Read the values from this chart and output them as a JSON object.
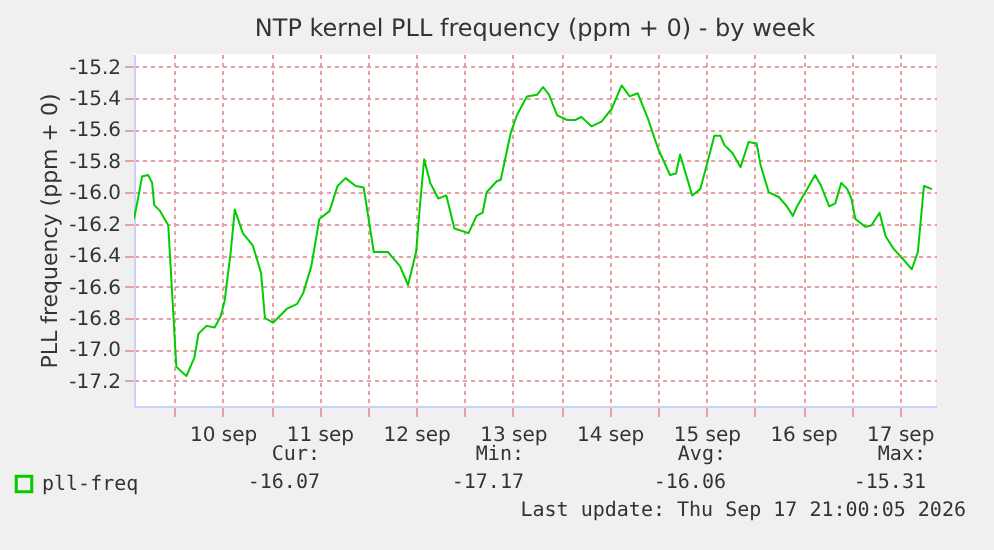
{
  "chart_data": {
    "type": "line",
    "title": "NTP kernel PLL frequency (ppm + 0) - by week",
    "ylabel": "PLL frequency (ppm + 0)",
    "xlim": [
      "2026-09-09T14:00",
      "2026-09-17T21:00"
    ],
    "xticks": [
      {
        "value": "2026-09-10T00:00",
        "label": null
      },
      {
        "value": "2026-09-10T12:00",
        "label": "10 sep"
      },
      {
        "value": "2026-09-11T00:00",
        "label": null
      },
      {
        "value": "2026-09-11T12:00",
        "label": "11 sep"
      },
      {
        "value": "2026-09-12T00:00",
        "label": null
      },
      {
        "value": "2026-09-12T12:00",
        "label": "12 sep"
      },
      {
        "value": "2026-09-13T00:00",
        "label": null
      },
      {
        "value": "2026-09-13T12:00",
        "label": "13 sep"
      },
      {
        "value": "2026-09-14T00:00",
        "label": null
      },
      {
        "value": "2026-09-14T12:00",
        "label": "14 sep"
      },
      {
        "value": "2026-09-15T00:00",
        "label": null
      },
      {
        "value": "2026-09-15T12:00",
        "label": "15 sep"
      },
      {
        "value": "2026-09-16T00:00",
        "label": null
      },
      {
        "value": "2026-09-16T12:00",
        "label": "16 sep"
      },
      {
        "value": "2026-09-17T00:00",
        "label": null
      },
      {
        "value": "2026-09-17T12:00",
        "label": "17 sep"
      }
    ],
    "ylim": [
      -17.36,
      -15.12
    ],
    "yticks": [
      -17.2,
      {
        "value": -17.0,
        "label": "-17.0"
      },
      -16.8,
      -16.6,
      -16.4,
      -16.2,
      {
        "value": -16.0,
        "label": "-16.0"
      },
      -15.8,
      -15.6,
      -15.4,
      -15.2
    ],
    "grid": true,
    "legend": "bottom",
    "x": [
      "2026-09-09T14:00",
      "2026-09-09T15:00",
      "2026-09-09T16:00",
      "2026-09-09T17:30",
      "2026-09-09T18:30",
      "2026-09-09T19:00",
      "2026-09-09T20:30",
      "2026-09-09T22:30",
      "2026-09-10T00:30",
      "2026-09-10T03:00",
      "2026-09-10T05:00",
      "2026-09-10T06:00",
      "2026-09-10T08:00",
      "2026-09-10T10:00",
      "2026-09-10T11:30",
      "2026-09-10T12:30",
      "2026-09-10T14:00",
      "2026-09-10T15:00",
      "2026-09-10T17:00",
      "2026-09-10T19:30",
      "2026-09-10T21:30",
      "2026-09-10T22:30",
      "2026-09-11T00:30",
      "2026-09-11T04:00",
      "2026-09-11T06:30",
      "2026-09-11T08:00",
      "2026-09-11T10:00",
      "2026-09-11T12:00",
      "2026-09-11T14:30",
      "2026-09-11T16:30",
      "2026-09-11T18:30",
      "2026-09-11T21:00",
      "2026-09-11T23:00",
      "2026-09-12T01:30",
      "2026-09-12T05:00",
      "2026-09-12T08:00",
      "2026-09-12T10:00",
      "2026-09-12T12:00",
      "2026-09-12T13:00",
      "2026-09-12T14:00",
      "2026-09-12T15:30",
      "2026-09-12T17:30",
      "2026-09-12T19:30",
      "2026-09-12T21:30",
      "2026-09-13T01:00",
      "2026-09-13T03:00",
      "2026-09-13T04:30",
      "2026-09-13T05:30",
      "2026-09-13T08:00",
      "2026-09-13T09:00",
      "2026-09-13T11:30",
      "2026-09-13T13:00",
      "2026-09-13T15:30",
      "2026-09-13T18:00",
      "2026-09-13T19:30",
      "2026-09-13T21:00",
      "2026-09-13T23:00",
      "2026-09-14T01:30",
      "2026-09-14T03:30",
      "2026-09-14T05:00",
      "2026-09-14T07:30",
      "2026-09-14T10:00",
      "2026-09-14T12:30",
      "2026-09-14T15:00",
      "2026-09-14T17:00",
      "2026-09-14T19:00",
      "2026-09-14T21:30",
      "2026-09-15T00:00",
      "2026-09-15T03:00",
      "2026-09-15T04:30",
      "2026-09-15T05:30",
      "2026-09-15T07:00",
      "2026-09-15T08:30",
      "2026-09-15T10:30",
      "2026-09-15T13:00",
      "2026-09-15T14:00",
      "2026-09-15T15:30",
      "2026-09-15T16:30",
      "2026-09-15T18:30",
      "2026-09-15T20:30",
      "2026-09-15T22:30",
      "2026-09-16T00:30",
      "2026-09-16T01:30",
      "2026-09-16T03:30",
      "2026-09-16T06:00",
      "2026-09-16T08:00",
      "2026-09-16T09:30",
      "2026-09-16T10:30",
      "2026-09-16T13:00",
      "2026-09-16T15:00",
      "2026-09-16T16:30",
      "2026-09-16T18:30",
      "2026-09-16T20:00",
      "2026-09-16T21:30",
      "2026-09-16T23:00",
      "2026-09-17T00:00",
      "2026-09-17T01:00",
      "2026-09-17T03:30",
      "2026-09-17T05:00",
      "2026-09-17T07:00",
      "2026-09-17T08:30",
      "2026-09-17T10:30",
      "2026-09-17T13:00",
      "2026-09-17T15:00",
      "2026-09-17T16:30",
      "2026-09-17T18:00",
      "2026-09-17T20:00"
    ],
    "series": [
      {
        "name": "pll-freq",
        "color": "#00cc00",
        "values": [
          -16.17,
          -16.04,
          -15.9,
          -15.89,
          -15.94,
          -16.08,
          -16.12,
          -16.21,
          -17.11,
          -17.17,
          -17.05,
          -16.9,
          -16.85,
          -16.86,
          -16.79,
          -16.69,
          -16.38,
          -16.11,
          -16.26,
          -16.34,
          -16.51,
          -16.8,
          -16.83,
          -16.74,
          -16.71,
          -16.64,
          -16.47,
          -16.17,
          -16.12,
          -15.96,
          -15.91,
          -15.96,
          -15.97,
          -16.38,
          -16.38,
          -16.47,
          -16.59,
          -16.38,
          -16.07,
          -15.79,
          -15.94,
          -16.04,
          -16.02,
          -16.23,
          -16.26,
          -16.15,
          -16.13,
          -16.0,
          -15.93,
          -15.92,
          -15.62,
          -15.51,
          -15.39,
          -15.38,
          -15.33,
          -15.38,
          -15.51,
          -15.54,
          -15.54,
          -15.52,
          -15.58,
          -15.55,
          -15.47,
          -15.32,
          -15.39,
          -15.37,
          -15.53,
          -15.72,
          -15.89,
          -15.88,
          -15.76,
          -15.89,
          -16.02,
          -15.98,
          -15.74,
          -15.64,
          -15.64,
          -15.7,
          -15.75,
          -15.84,
          -15.68,
          -15.69,
          -15.83,
          -16.0,
          -16.03,
          -16.09,
          -16.15,
          -16.09,
          -15.98,
          -15.89,
          -15.96,
          -16.09,
          -16.07,
          -15.94,
          -15.98,
          -16.04,
          -16.17,
          -16.22,
          -16.21,
          -16.13,
          -16.28,
          -16.36,
          -16.43,
          -16.49,
          -16.38,
          -15.96,
          -15.98
        ]
      }
    ],
    "annotations": [
      "Cur:",
      "-16.07",
      "Min:",
      "-17.17",
      "Avg:",
      "-16.06",
      "Max:",
      "-15.31",
      "Last update: Thu Sep 17 21:00:05 2026"
    ]
  }
}
